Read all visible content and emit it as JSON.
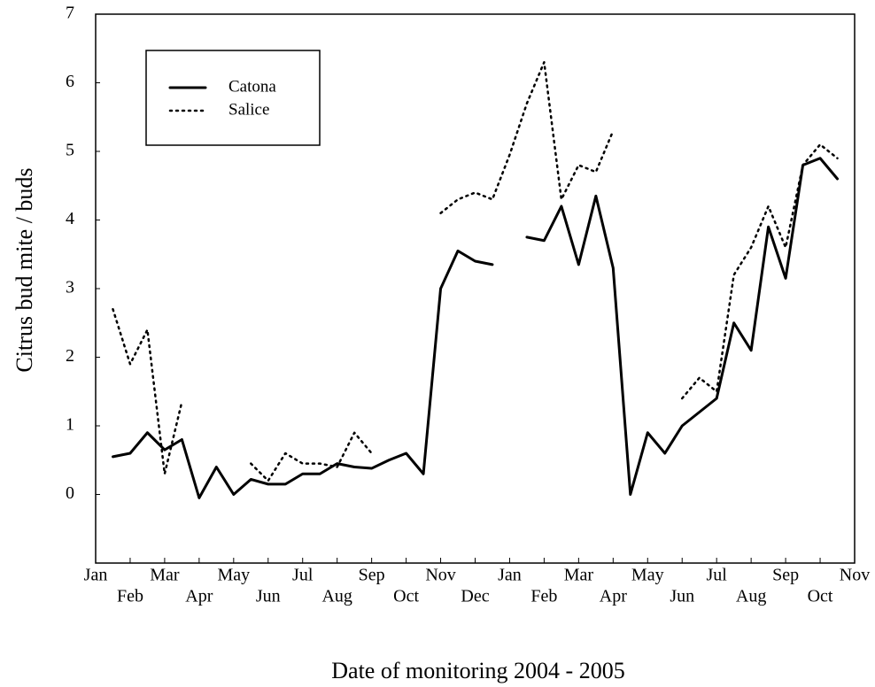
{
  "chart_data": {
    "type": "line",
    "xlabel": "Date of monitoring 2004 - 2005",
    "ylabel": "Citrus bud mite / buds",
    "x": [
      0,
      0.5,
      1,
      1.5,
      2,
      2.5,
      3,
      3.5,
      4,
      4.5,
      5,
      5.5,
      6,
      6.5,
      7,
      7.5,
      8,
      8.5,
      9,
      9.5,
      10,
      10.5,
      11,
      11.5,
      12,
      12.5,
      13,
      13.5,
      14,
      14.5,
      15,
      15.5,
      16,
      16.5,
      17,
      17.5,
      18,
      18.5,
      19,
      19.5,
      20,
      20.5,
      21,
      21.5,
      22
    ],
    "xlim": [
      0,
      22
    ],
    "xticks": [
      {
        "value": 0,
        "label": "Jan"
      },
      {
        "value": 1,
        "label": "Feb"
      },
      {
        "value": 2,
        "label": "Mar"
      },
      {
        "value": 3,
        "label": "Apr"
      },
      {
        "value": 4,
        "label": "May"
      },
      {
        "value": 5,
        "label": "Jun"
      },
      {
        "value": 6,
        "label": "Jul"
      },
      {
        "value": 7,
        "label": "Aug"
      },
      {
        "value": 8,
        "label": "Sep"
      },
      {
        "value": 9,
        "label": "Oct"
      },
      {
        "value": 10,
        "label": "Nov"
      },
      {
        "value": 11,
        "label": "Dec"
      },
      {
        "value": 12,
        "label": "Jan"
      },
      {
        "value": 13,
        "label": "Feb"
      },
      {
        "value": 14,
        "label": "Mar"
      },
      {
        "value": 15,
        "label": "Apr"
      },
      {
        "value": 16,
        "label": "May"
      },
      {
        "value": 17,
        "label": "Jun"
      },
      {
        "value": 18,
        "label": "Jul"
      },
      {
        "value": 19,
        "label": "Aug"
      },
      {
        "value": 20,
        "label": "Sep"
      },
      {
        "value": 21,
        "label": "Oct"
      },
      {
        "value": 22,
        "label": "Nov"
      }
    ],
    "ylim": [
      -1,
      7
    ],
    "yticks": [
      0,
      1,
      2,
      3,
      4,
      5,
      6,
      7
    ],
    "legend": "upper left",
    "series": [
      {
        "name": "Catona",
        "color": "#000000",
        "dash": "solid",
        "values": [
          null,
          0.55,
          0.6,
          0.9,
          0.65,
          0.8,
          -0.05,
          0.4,
          0,
          0.22,
          0.15,
          0.15,
          0.3,
          0.3,
          0.45,
          0.4,
          0.38,
          0.5,
          0.6,
          0.3,
          3.0,
          3.55,
          3.4,
          3.35,
          null,
          3.75,
          3.7,
          4.2,
          3.35,
          4.35,
          3.3,
          0,
          0.9,
          0.6,
          1.0,
          1.2,
          1.4,
          2.5,
          2.1,
          3.9,
          3.15,
          4.8,
          4.9,
          4.6,
          null
        ]
      },
      {
        "name": "Salice",
        "color": "#000000",
        "dash": "dotted",
        "values": [
          null,
          2.7,
          1.9,
          2.4,
          0.3,
          1.35,
          null,
          null,
          null,
          0.45,
          0.2,
          0.6,
          0.45,
          0.45,
          0.4,
          0.9,
          0.6,
          null,
          null,
          null,
          4.1,
          4.3,
          4.4,
          4.3,
          4.95,
          5.7,
          6.3,
          4.3,
          4.8,
          4.7,
          5.3,
          null,
          null,
          null,
          1.4,
          1.7,
          1.5,
          3.2,
          3.6,
          4.2,
          3.6,
          4.8,
          5.1,
          4.9,
          null
        ]
      }
    ]
  }
}
